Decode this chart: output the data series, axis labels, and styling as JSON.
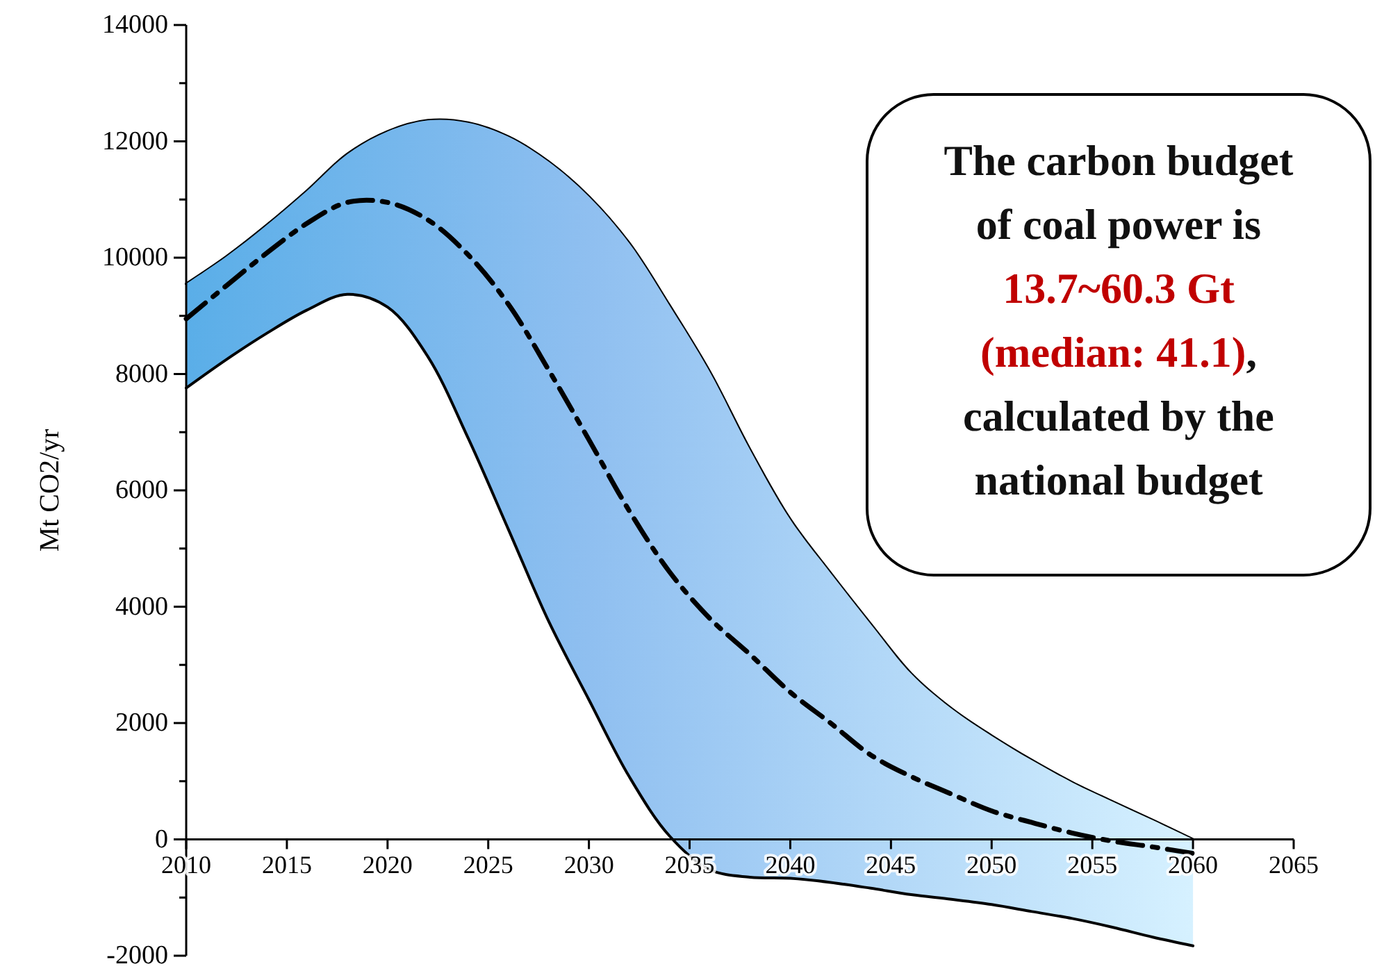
{
  "chart_data": {
    "type": "line",
    "ylabel": "Mt CO2/yr",
    "x": [
      2010,
      2012,
      2014,
      2016,
      2018,
      2020,
      2022,
      2024,
      2026,
      2028,
      2030,
      2032,
      2034,
      2036,
      2038,
      2040,
      2042,
      2044,
      2046,
      2048,
      2050,
      2052,
      2054,
      2056,
      2058,
      2060
    ],
    "series": [
      {
        "color": "#000000",
        "line_style": "solid",
        "values": [
          9550,
          10020,
          10560,
          11150,
          11780,
          12170,
          12360,
          12320,
          12080,
          11650,
          11050,
          10250,
          9180,
          8040,
          6700,
          5500,
          4580,
          3700,
          2850,
          2250,
          1780,
          1360,
          980,
          650,
          330,
          0
        ]
      },
      {
        "color": "#000000",
        "line_style": "dashed",
        "values": [
          8950,
          9520,
          10080,
          10590,
          10950,
          10950,
          10650,
          10050,
          9200,
          8070,
          6870,
          5650,
          4600,
          3800,
          3180,
          2530,
          2000,
          1450,
          1080,
          780,
          490,
          290,
          110,
          -30,
          -130,
          -240
        ],
        "lower": [
          7760,
          8250,
          8700,
          9100,
          9370,
          9150,
          8300,
          6900,
          5330,
          3750,
          2400,
          1080,
          60,
          -520,
          -650,
          -670,
          -740,
          -840,
          -950,
          -1030,
          -1120,
          -1240,
          -1360,
          -1510,
          -1680,
          -1830
        ],
        "upper": [
          9550,
          10020,
          10560,
          11150,
          11780,
          12170,
          12360,
          12320,
          12080,
          11650,
          11050,
          10250,
          9180,
          8040,
          6700,
          5500,
          4580,
          3700,
          2850,
          2250,
          1780,
          1360,
          980,
          650,
          330,
          0
        ]
      },
      {
        "color": "#000000",
        "line_style": "solid",
        "values": [
          7760,
          8250,
          8700,
          9100,
          9370,
          9150,
          8300,
          6900,
          5330,
          3750,
          2400,
          1080,
          60,
          -520,
          -650,
          -670,
          -740,
          -840,
          -950,
          -1030,
          -1120,
          -1240,
          -1360,
          -1510,
          -1680,
          -1830
        ]
      }
    ],
    "xlim": [
      2010,
      2065
    ],
    "xticks": [
      2010,
      2015,
      2020,
      2025,
      2030,
      2035,
      2040,
      2045,
      2050,
      2055,
      2060,
      2065
    ],
    "ylim": [
      -2000,
      14000
    ],
    "yticks": [
      -2000,
      {
        "value": -1000,
        "label": null
      },
      0,
      {
        "value": 1000,
        "label": null
      },
      2000,
      {
        "value": 3000,
        "label": null
      },
      4000,
      {
        "value": 5000,
        "label": null
      },
      6000,
      {
        "value": 7000,
        "label": null
      },
      8000,
      {
        "value": 9000,
        "label": null
      },
      10000,
      {
        "value": 11000,
        "label": null
      },
      12000,
      {
        "value": 13000,
        "label": null
      },
      14000
    ],
    "marker": "none",
    "grid": false,
    "annotations": [
      "The carbon budget of coal power is",
      "13.7~60.3 Gt (median: 41.1)",
      ", calculated by the national budget"
    ]
  }
}
